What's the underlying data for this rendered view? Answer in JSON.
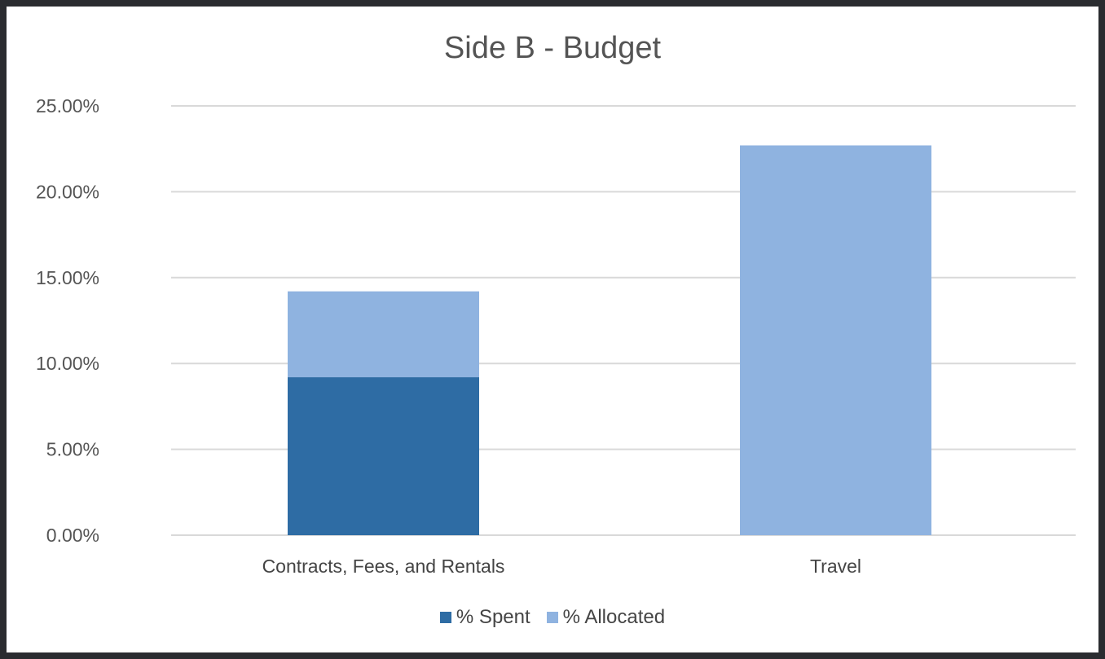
{
  "chart_data": {
    "type": "bar",
    "stacked": true,
    "title": "Side B - Budget",
    "categories": [
      "Contracts, Fees, and Rentals",
      "Travel"
    ],
    "series": [
      {
        "name": "% Spent",
        "values": [
          9.2,
          0
        ],
        "color": "#2e6ca4"
      },
      {
        "name": "% Allocated",
        "values": [
          5.0,
          22.7
        ],
        "color": "#8fb3e0"
      }
    ],
    "ylim": [
      0,
      25
    ],
    "yticks": [
      "0.00%",
      "5.00%",
      "10.00%",
      "15.00%",
      "20.00%",
      "25.00%"
    ],
    "ytick_values": [
      0,
      5,
      10,
      15,
      20,
      25
    ],
    "grid": true,
    "legend_position": "bottom",
    "xlabel": "",
    "ylabel": ""
  }
}
